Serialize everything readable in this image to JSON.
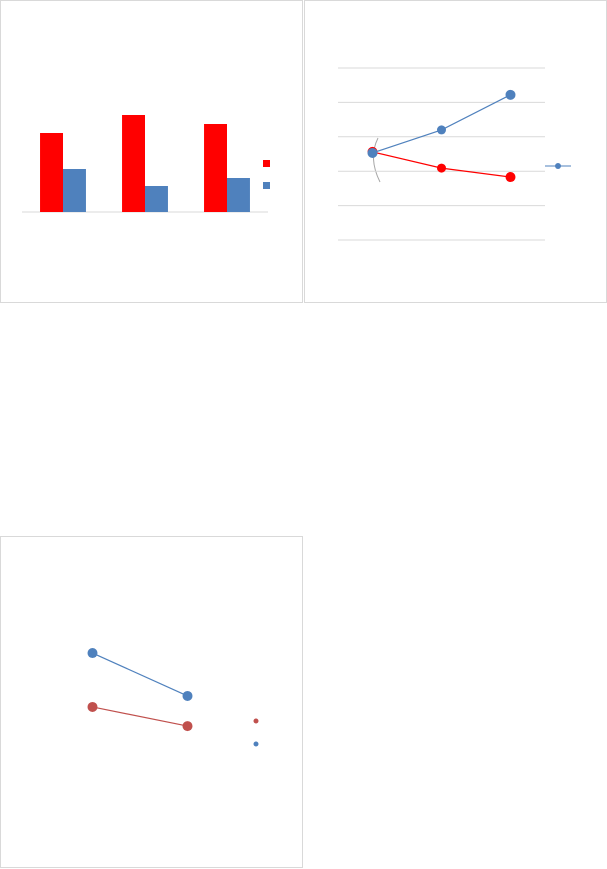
{
  "chart_data": [
    {
      "type": "bar",
      "categories": [
        null,
        null,
        null
      ],
      "series": [
        {
          "color": "#ff0000",
          "values": [
            79,
            97,
            88
          ]
        },
        {
          "color": "#4f81bd",
          "values": [
            43,
            26,
            34
          ]
        }
      ],
      "ylim": [
        0,
        120
      ],
      "grid": false
    },
    {
      "type": "line",
      "categories": [
        null,
        null,
        null
      ],
      "series": [
        {
          "color": "#ff0000",
          "values": [
            2.56,
            2.09,
            1.83
          ]
        },
        {
          "color": "#4f81bd",
          "values": [
            2.53,
            3.2,
            4.22
          ]
        }
      ],
      "ylim": [
        0,
        5
      ],
      "yticks": [
        0,
        1,
        2,
        3,
        4,
        5
      ],
      "grid": true
    },
    {
      "type": "line",
      "categories": [
        null,
        null
      ],
      "series": [
        {
          "color": "#c0504d",
          "values": [
            4.23,
            3.36
          ]
        },
        {
          "color": "#4f81bd",
          "values": [
            6.68,
            4.73
          ]
        }
      ],
      "ylim": [
        0,
        10
      ],
      "grid": false
    }
  ]
}
